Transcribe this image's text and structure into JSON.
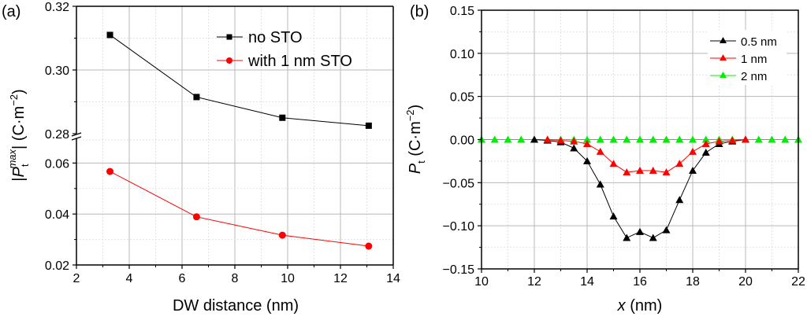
{
  "chart_data": [
    {
      "panel": "(a)",
      "type": "line",
      "title": "",
      "xlabel": "DW distance (nm)",
      "ylabel_parts": {
        "open": "|",
        "var": "P",
        "sub": "t",
        "sup": "max",
        "close": "| (C·m",
        "exp": "−2",
        "end": ")"
      },
      "xlim": [
        2,
        14
      ],
      "xticks": [
        2,
        4,
        6,
        8,
        10,
        12,
        14
      ],
      "xtick_labels": [
        "2",
        "4",
        "6",
        "8",
        "10",
        "12",
        "14"
      ],
      "y_broken_axis": true,
      "ylim_upper": [
        0.28,
        0.32
      ],
      "yticks_upper": [
        0.28,
        0.3,
        0.32
      ],
      "ytick_labels_upper": [
        "0.28",
        "0.30",
        "0.32"
      ],
      "ylim_lower": [
        0.02,
        0.07
      ],
      "yticks_lower": [
        0.02,
        0.04,
        0.06
      ],
      "ytick_labels_lower": [
        "0.02",
        "0.04",
        "0.06"
      ],
      "grid": true,
      "legend_position": "top-right",
      "series": [
        {
          "name": "no STO",
          "color": "#000000",
          "marker": "square",
          "axis": "upper",
          "x": [
            3.27,
            6.55,
            9.8,
            13.07
          ],
          "values": [
            0.311,
            0.2915,
            0.285,
            0.2825
          ]
        },
        {
          "name": "with 1 nm STO",
          "color": "#ff0000",
          "marker": "circle",
          "axis": "lower",
          "x": [
            3.27,
            6.55,
            9.8,
            13.07
          ],
          "values": [
            0.0567,
            0.0389,
            0.0317,
            0.0274
          ]
        }
      ]
    },
    {
      "panel": "(b)",
      "type": "line",
      "title": "",
      "xlabel_var": "x",
      "xlabel_unit": " (nm)",
      "ylabel_parts": {
        "var": "P",
        "sub": "t",
        "unit": " (C·m",
        "exp": "−2",
        "end": ")"
      },
      "xlim": [
        10,
        22
      ],
      "xticks": [
        10,
        12,
        14,
        16,
        18,
        20,
        22
      ],
      "xtick_labels": [
        "10",
        "12",
        "14",
        "16",
        "18",
        "20",
        "22"
      ],
      "ylim": [
        -0.15,
        0.15
      ],
      "yticks": [
        -0.15,
        -0.1,
        -0.05,
        0.0,
        0.05,
        0.1,
        0.15
      ],
      "ytick_labels": [
        "−0.15",
        "−0.10",
        "−0.05",
        "0.00",
        "0.05",
        "0.10",
        "0.15"
      ],
      "grid": true,
      "legend_position": "top-right",
      "series": [
        {
          "name": "0.5 nm",
          "color": "#000000",
          "marker": "triangle",
          "x": [
            12,
            12.5,
            13,
            13.5,
            14,
            14.5,
            15,
            15.5,
            16,
            16.5,
            17,
            17.5,
            18,
            18.5,
            19,
            19.5,
            20
          ],
          "values": [
            0,
            -0.001,
            -0.003,
            -0.01,
            -0.025,
            -0.052,
            -0.089,
            -0.114,
            -0.107,
            -0.114,
            -0.105,
            -0.07,
            -0.036,
            -0.015,
            -0.005,
            -0.002,
            0
          ]
        },
        {
          "name": "1 nm",
          "color": "#ff0000",
          "marker": "triangle",
          "x": [
            12.5,
            13,
            13.5,
            14,
            14.5,
            15,
            15.5,
            16,
            16.5,
            17,
            17.5,
            18,
            18.5,
            19,
            19.5,
            20
          ],
          "values": [
            0,
            -0.001,
            -0.002,
            -0.005,
            -0.014,
            -0.028,
            -0.038,
            -0.036,
            -0.036,
            -0.038,
            -0.028,
            -0.014,
            -0.005,
            -0.002,
            -0.001,
            0
          ]
        },
        {
          "name": "2 nm",
          "color": "#00ee00",
          "marker": "triangle",
          "x": [
            10,
            10.5,
            11,
            11.5,
            12,
            12.5,
            13,
            13.5,
            14,
            14.5,
            15,
            15.5,
            16,
            16.5,
            17,
            17.5,
            18,
            18.5,
            19,
            19.5,
            20,
            20.5,
            21,
            21.5,
            22
          ],
          "values": [
            0,
            0,
            0,
            0,
            0,
            0,
            0,
            0,
            0,
            0,
            0,
            0,
            0,
            0,
            0,
            0,
            0,
            0,
            0,
            0,
            0,
            0,
            0,
            0,
            0
          ]
        }
      ]
    }
  ]
}
